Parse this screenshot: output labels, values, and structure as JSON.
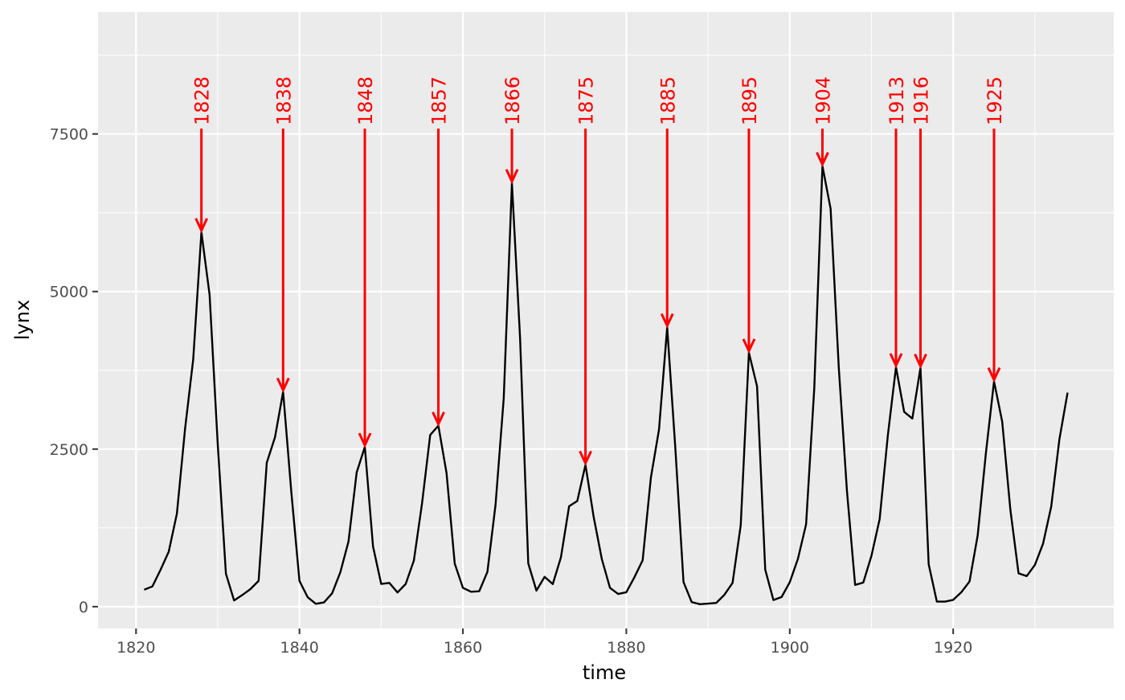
{
  "chart_data": {
    "type": "line",
    "xlabel": "time",
    "ylabel": "lynx",
    "xlim": [
      1815.35,
      1939.65
    ],
    "ylim": [
      -346.1,
      9434.1
    ],
    "x_ticks": [
      1820,
      1840,
      1860,
      1880,
      1900,
      1920
    ],
    "y_ticks": [
      0,
      2500,
      5000,
      7500
    ],
    "x_tick_labels": [
      "1820",
      "1840",
      "1860",
      "1880",
      "1900",
      "1920"
    ],
    "y_tick_labels": [
      "0",
      "2500",
      "5000",
      "7500"
    ],
    "grid": true,
    "line_color": "#000000",
    "annotation_color": "#ff0000",
    "panel_background": "#ebebeb",
    "series": [
      {
        "x": [
          1821,
          1822,
          1823,
          1824,
          1825,
          1826,
          1827,
          1828,
          1829,
          1830,
          1831,
          1832,
          1833,
          1834,
          1835,
          1836,
          1837,
          1838,
          1839,
          1840,
          1841,
          1842,
          1843,
          1844,
          1845,
          1846,
          1847,
          1848,
          1849,
          1850,
          1851,
          1852,
          1853,
          1854,
          1855,
          1856,
          1857,
          1858,
          1859,
          1860,
          1861,
          1862,
          1863,
          1864,
          1865,
          1866,
          1867,
          1868,
          1869,
          1870,
          1871,
          1872,
          1873,
          1874,
          1875,
          1876,
          1877,
          1878,
          1879,
          1880,
          1881,
          1882,
          1883,
          1884,
          1885,
          1886,
          1887,
          1888,
          1889,
          1890,
          1891,
          1892,
          1893,
          1894,
          1895,
          1896,
          1897,
          1898,
          1899,
          1900,
          1901,
          1902,
          1903,
          1904,
          1905,
          1906,
          1907,
          1908,
          1909,
          1910,
          1911,
          1912,
          1913,
          1914,
          1915,
          1916,
          1917,
          1918,
          1919,
          1920,
          1921,
          1922,
          1923,
          1924,
          1925,
          1926,
          1927,
          1928,
          1929,
          1930,
          1931,
          1932,
          1933,
          1934
        ],
        "values": [
          269,
          321,
          585,
          871,
          1475,
          2821,
          3928,
          5943,
          4950,
          2577,
          523,
          98,
          184,
          279,
          409,
          2285,
          2685,
          3409,
          1824,
          409,
          151,
          45,
          68,
          213,
          546,
          1033,
          2129,
          2536,
          957,
          361,
          377,
          225,
          360,
          731,
          1638,
          2725,
          2871,
          2119,
          684,
          299,
          236,
          245,
          552,
          1623,
          3311,
          6721,
          4254,
          687,
          255,
          473,
          358,
          784,
          1594,
          1676,
          2251,
          1426,
          756,
          299,
          201,
          229,
          469,
          736,
          2042,
          2811,
          4431,
          2511,
          389,
          73,
          39,
          49,
          59,
          188,
          377,
          1292,
          4031,
          3495,
          587,
          105,
          153,
          387,
          758,
          1307,
          3465,
          6991,
          6313,
          3794,
          1836,
          345,
          382,
          808,
          1388,
          2713,
          3800,
          3091,
          2985,
          3790,
          674,
          81,
          80,
          108,
          229,
          399,
          1132,
          2432,
          3574,
          2935,
          1537,
          529,
          485,
          662,
          1000,
          1590,
          2657,
          3396
        ]
      }
    ],
    "annotations": [
      {
        "label": "1828",
        "x": 1828,
        "y": 5943
      },
      {
        "label": "1838",
        "x": 1838,
        "y": 3409
      },
      {
        "label": "1848",
        "x": 1848,
        "y": 2536
      },
      {
        "label": "1857",
        "x": 1857,
        "y": 2871
      },
      {
        "label": "1866",
        "x": 1866,
        "y": 6721
      },
      {
        "label": "1875",
        "x": 1875,
        "y": 2251
      },
      {
        "label": "1885",
        "x": 1885,
        "y": 4431
      },
      {
        "label": "1895",
        "x": 1895,
        "y": 4031
      },
      {
        "label": "1904",
        "x": 1904,
        "y": 6991
      },
      {
        "label": "1913",
        "x": 1913,
        "y": 3800
      },
      {
        "label": "1916",
        "x": 1916,
        "y": 3790
      },
      {
        "label": "1925",
        "x": 1925,
        "y": 3574
      }
    ]
  }
}
